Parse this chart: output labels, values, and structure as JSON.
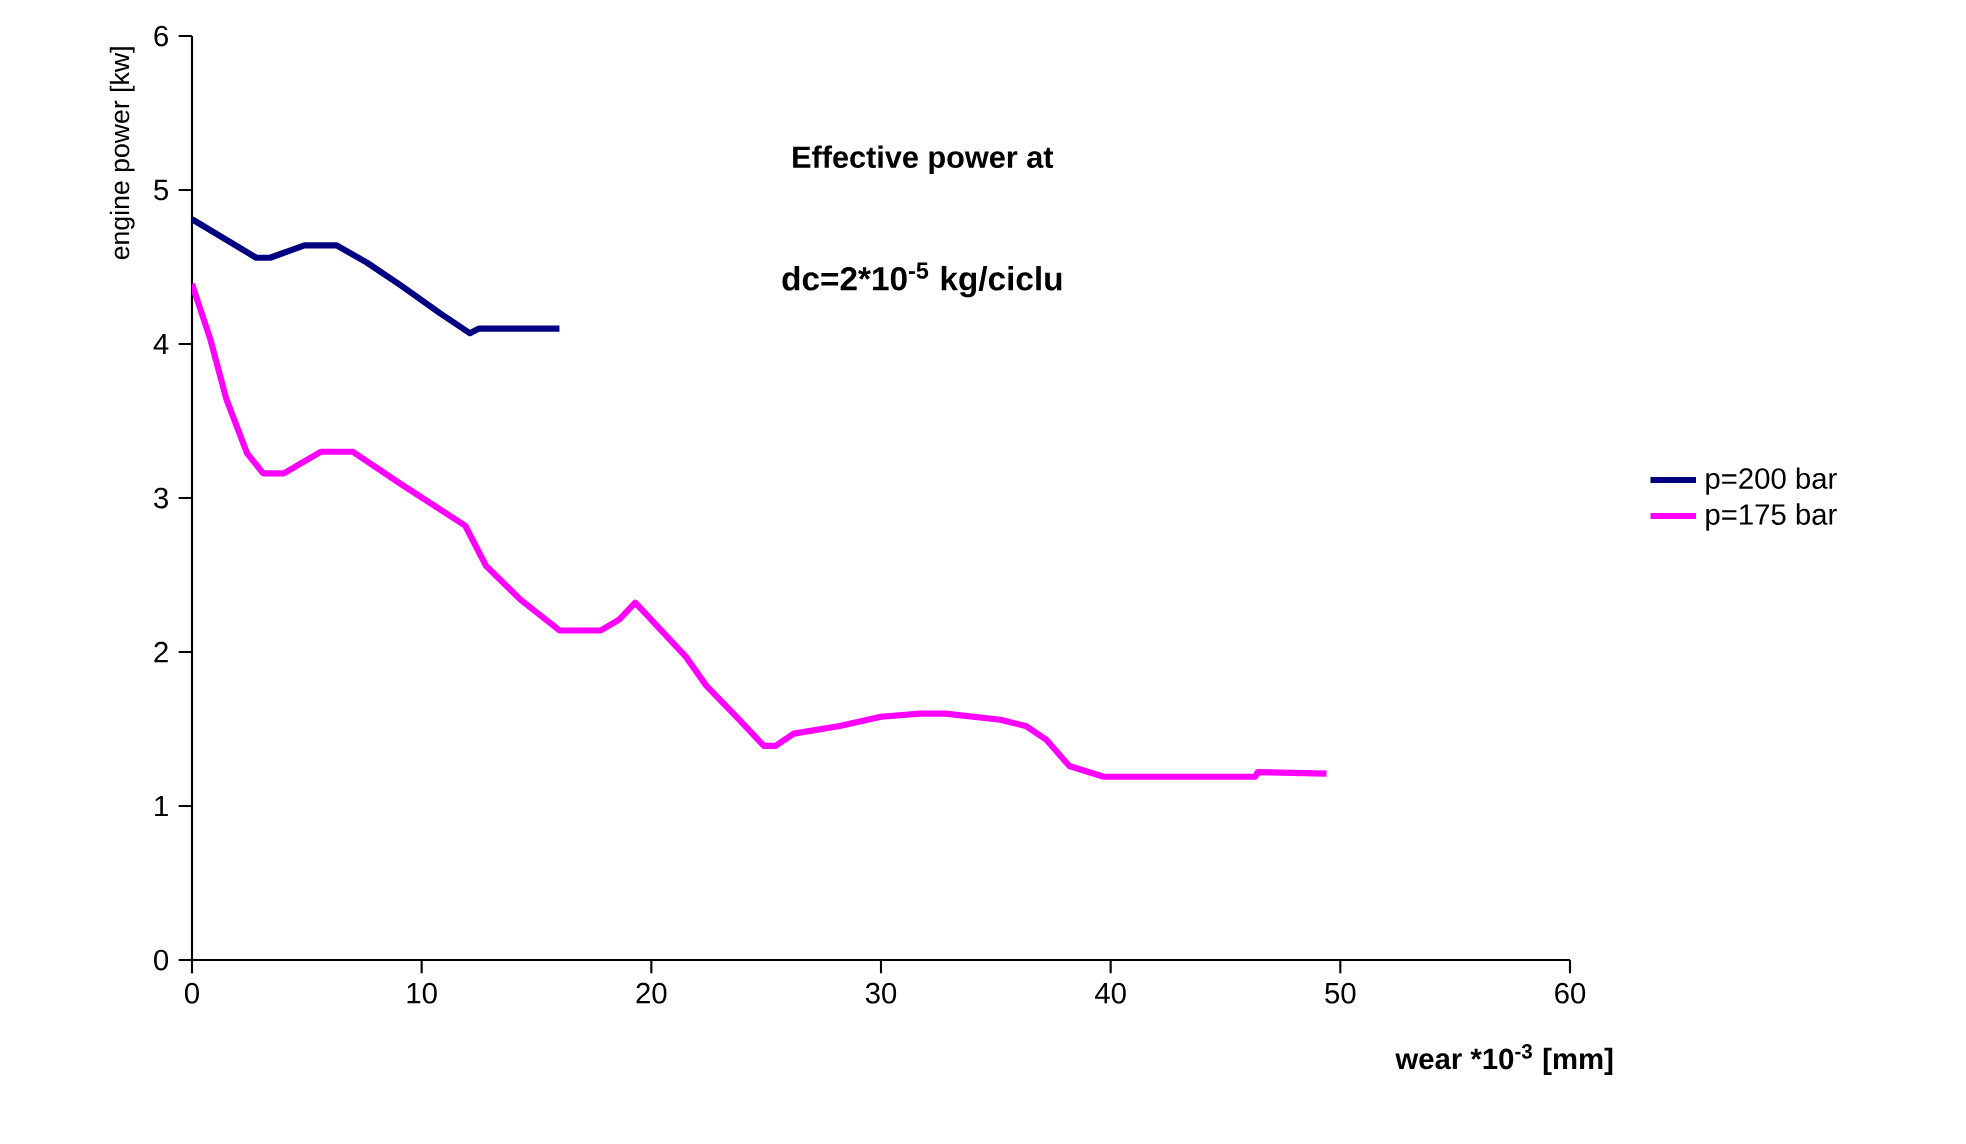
{
  "chart_data": {
    "type": "line",
    "title": "Effective power at",
    "subtitle": "dc=2*10$^{-5}$ kg/ciclu",
    "xlabel": "wear  *10$^{-3}$ [mm]",
    "ylabel": "engine power [kw]",
    "xlim": [
      0,
      60
    ],
    "xticks": [
      0,
      10,
      20,
      30,
      40,
      50,
      60
    ],
    "ylim": [
      0,
      6
    ],
    "yticks": [
      0,
      1,
      2,
      3,
      4,
      5,
      6
    ],
    "grid": false,
    "legend": "right",
    "marker": "none",
    "line_style": "solid",
    "series": [
      {
        "name": "p=200  bar",
        "color": "#000080",
        "x": [
          0,
          2.8,
          3.4,
          4.9,
          6.3,
          7.6,
          9.1,
          10.8,
          12.1,
          12.5,
          16.0
        ],
        "values": [
          4.81,
          4.56,
          4.56,
          4.64,
          4.64,
          4.53,
          4.38,
          4.2,
          4.07,
          4.1,
          4.1
        ]
      },
      {
        "name": "p=175  bar",
        "color": "#ff00ff",
        "x": [
          0,
          0.8,
          1.5,
          2.4,
          3.1,
          4.0,
          5.6,
          7.0,
          9.1,
          11.9,
          12.8,
          14.3,
          16.0,
          17.8,
          18.6,
          19.3,
          21.5,
          22.4,
          23.7,
          24.9,
          25.4,
          26.2,
          28.2,
          30.0,
          31.7,
          32.8,
          35.2,
          36.3,
          37.2,
          38.2,
          39.7,
          46.3,
          46.4,
          49.4
        ],
        "values": [
          4.39,
          4.03,
          3.64,
          3.29,
          3.16,
          3.16,
          3.3,
          3.3,
          3.09,
          2.82,
          2.56,
          2.34,
          2.14,
          2.14,
          2.21,
          2.32,
          1.97,
          1.78,
          1.58,
          1.39,
          1.39,
          1.47,
          1.52,
          1.58,
          1.6,
          1.6,
          1.56,
          1.52,
          1.43,
          1.26,
          1.19,
          1.19,
          1.22,
          1.21
        ]
      }
    ]
  }
}
